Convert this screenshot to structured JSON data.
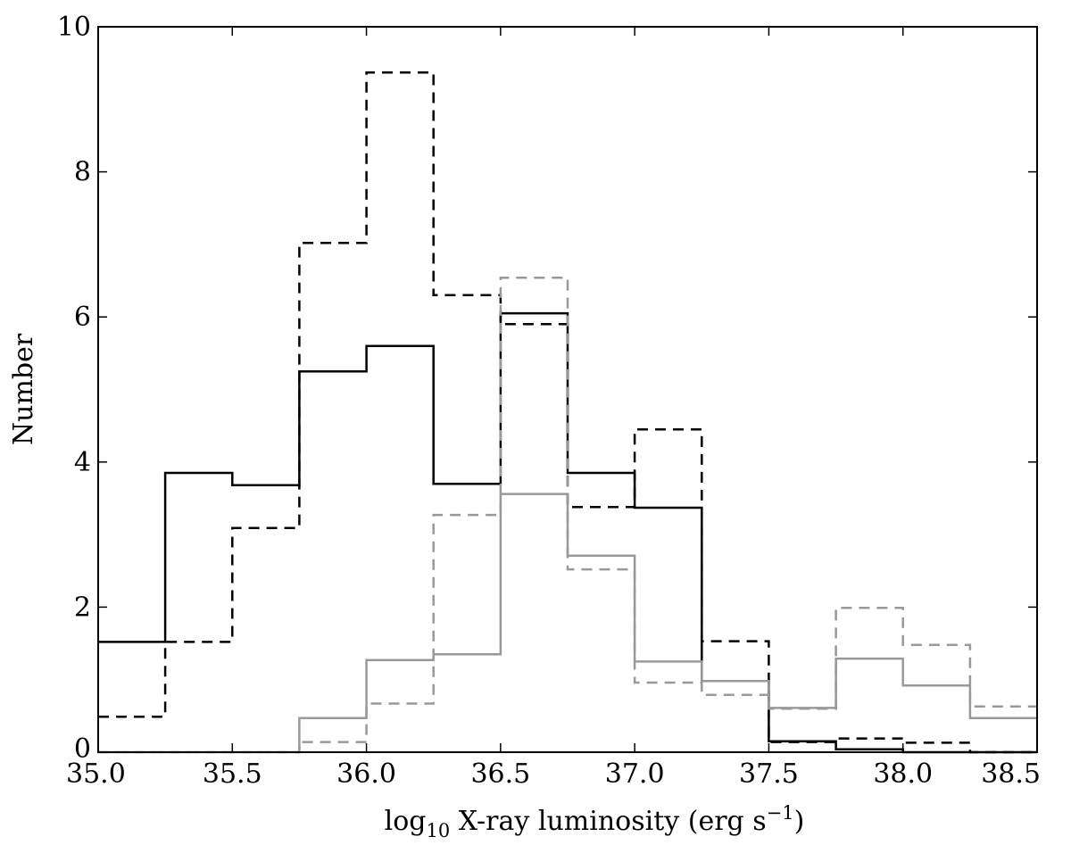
{
  "chart_data": {
    "type": "step",
    "xlabel": {
      "prefix": "log",
      "sub": "10",
      "main": " X-ray luminosity (erg s",
      "sup": "−1",
      "suffix": ")"
    },
    "ylabel": "Number",
    "xlim": [
      35.0,
      38.5
    ],
    "ylim": [
      0,
      10
    ],
    "x_ticks": [
      "35.0",
      "35.5",
      "36.0",
      "36.5",
      "37.0",
      "37.5",
      "38.0",
      "38.5"
    ],
    "y_ticks": [
      "0",
      "2",
      "4",
      "6",
      "8",
      "10"
    ],
    "bin_edges": [
      35.0,
      35.25,
      35.5,
      35.75,
      36.0,
      36.25,
      36.5,
      36.75,
      37.0,
      37.25,
      37.5,
      37.75,
      38.0,
      38.25,
      38.5
    ],
    "grid": false,
    "series": [
      {
        "color": "#000000",
        "linestyle": "solid",
        "values": [
          1.52,
          3.85,
          3.68,
          5.25,
          5.6,
          3.7,
          6.05,
          3.85,
          3.37,
          0.98,
          0.15,
          0.04,
          0.0,
          0.0
        ]
      },
      {
        "color": "#000000",
        "linestyle": "dashed",
        "values": [
          0.49,
          1.52,
          3.09,
          7.02,
          9.37,
          6.3,
          5.9,
          3.38,
          4.45,
          1.53,
          0.14,
          0.19,
          0.13,
          0.0
        ]
      },
      {
        "color": "#999999",
        "linestyle": "solid",
        "values": [
          0.0,
          0.0,
          0.0,
          0.47,
          1.27,
          1.35,
          3.56,
          2.71,
          1.25,
          0.98,
          0.61,
          1.29,
          0.92,
          0.47
        ]
      },
      {
        "color": "#999999",
        "linestyle": "dashed",
        "values": [
          0.0,
          0.0,
          0.0,
          0.14,
          0.67,
          3.27,
          6.54,
          2.52,
          0.96,
          0.79,
          0.6,
          1.99,
          1.48,
          0.63
        ]
      }
    ]
  }
}
